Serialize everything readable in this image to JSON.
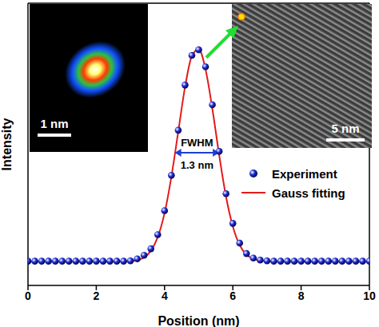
{
  "chart_data": {
    "type": "scatter",
    "x_label": "Position (nm)",
    "y_label": "Intensity",
    "xlim": [
      0,
      10
    ],
    "xticks": [
      0,
      2,
      4,
      6,
      8,
      10
    ],
    "ylim": [
      0,
      1
    ],
    "yticks": [
      0,
      0.2,
      0.4,
      0.6,
      0.8,
      1
    ],
    "tick_labels": "x",
    "legend": "right",
    "x": [
      0,
      0.2,
      0.4,
      0.6,
      0.8,
      1,
      1.2,
      1.4,
      1.6,
      1.8,
      2,
      2.2,
      2.4,
      2.6,
      2.8,
      3,
      3.2,
      3.4,
      3.6,
      3.8,
      4,
      4.2,
      4.4,
      4.6,
      4.8,
      5,
      5.2,
      5.4,
      5.6,
      5.8,
      6,
      6.2,
      6.4,
      6.6,
      6.8,
      7,
      7.2,
      7.4,
      7.6,
      7.8,
      8,
      8.2,
      8.4,
      8.6,
      8.8,
      9,
      9.2,
      9.4,
      9.6,
      9.8,
      10
    ],
    "series": [
      {
        "name": "Experiment",
        "type": "scatter",
        "marker": "circle",
        "color": "#1f2fd6",
        "values": [
          0.086,
          0.086,
          0.086,
          0.086,
          0.086,
          0.086,
          0.086,
          0.086,
          0.086,
          0.086,
          0.086,
          0.086,
          0.086,
          0.086,
          0.086,
          0.087,
          0.094,
          0.107,
          0.13,
          0.18,
          0.265,
          0.39,
          0.55,
          0.71,
          0.815,
          0.835,
          0.775,
          0.64,
          0.475,
          0.325,
          0.22,
          0.15,
          0.113,
          0.097,
          0.09,
          0.087,
          0.086,
          0.086,
          0.086,
          0.086,
          0.086,
          0.086,
          0.086,
          0.086,
          0.086,
          0.086,
          0.086,
          0.086,
          0.086,
          0.086,
          0.086
        ]
      },
      {
        "name": "Gauss fitting",
        "type": "line",
        "line_style": "solid",
        "color": "#e41a1c",
        "values": [
          0.085,
          0.085,
          0.085,
          0.085,
          0.085,
          0.085,
          0.085,
          0.085,
          0.085,
          0.085,
          0.085,
          0.085,
          0.085,
          0.085,
          0.085,
          0.086,
          0.09,
          0.099,
          0.123,
          0.171,
          0.256,
          0.385,
          0.544,
          0.703,
          0.813,
          0.837,
          0.766,
          0.626,
          0.462,
          0.315,
          0.209,
          0.143,
          0.109,
          0.095,
          0.088,
          0.086,
          0.085,
          0.085,
          0.085,
          0.085,
          0.085,
          0.085,
          0.085,
          0.085,
          0.085,
          0.085,
          0.085,
          0.085,
          0.085,
          0.085,
          0.085
        ]
      }
    ],
    "annotation": {
      "label": "FWHM",
      "text": "1.3 nm",
      "x_from": 4.3,
      "x_to": 5.6,
      "y": 0.47
    },
    "insets": [
      {
        "scale_bar": "1 nm"
      },
      {
        "scale_bar": "5 nm"
      }
    ]
  }
}
